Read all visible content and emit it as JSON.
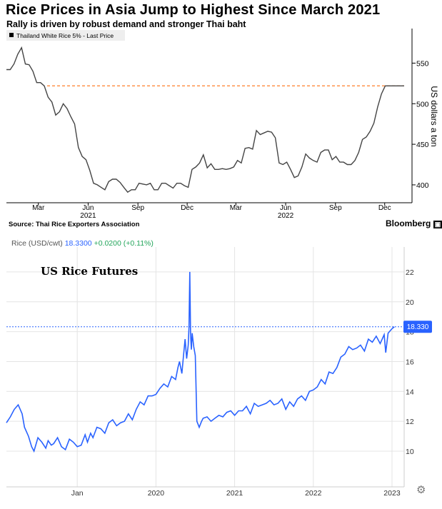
{
  "top": {
    "title": "Rice Prices in Asia Jump to Highest Since March 2021",
    "subtitle": "Rally is driven by robust demand and stronger Thai baht",
    "source": "Source: Thai Rice Exporters Association",
    "brand": "Bloomberg",
    "brand_icon": "bloomberg-terminal-icon"
  },
  "bottom": {
    "title": "US Rice Futures",
    "legend_name": "Rice (USD/cwt)",
    "legend_value": "18.3300",
    "legend_change": "+0.0200 (+0.11%)",
    "price_tag": "18.330",
    "settings_icon": "gear-icon"
  },
  "colors": {
    "thai_line": "#444444",
    "reference_line": "#ff7f27",
    "us_line": "#2962ff",
    "price_tag_bg": "#2962ff",
    "change_green": "#22a55a"
  },
  "chart_data": [
    {
      "type": "line",
      "title": "Rice Prices in Asia Jump to Highest Since March 2021",
      "subtitle": "Rally is driven by robust demand and stronger Thai baht",
      "ylabel": "US dollars a ton",
      "ylim": [
        385,
        575
      ],
      "yticks": [
        400,
        450,
        500,
        550
      ],
      "x_tick_labels": [
        "Mar",
        "Jun",
        "Sep",
        "Dec",
        "Mar",
        "Jun",
        "Sep",
        "Dec"
      ],
      "x_tick_dates": [
        "2021-03-01",
        "2021-06-01",
        "2021-09-01",
        "2021-12-01",
        "2022-03-01",
        "2022-06-01",
        "2022-09-01",
        "2022-12-01"
      ],
      "year_labels": [
        {
          "label": "2021",
          "date": "2021-06-01"
        },
        {
          "label": "2022",
          "date": "2022-06-01"
        }
      ],
      "xlim": [
        "2021-01-01",
        "2023-01-06"
      ],
      "reference_line": 522,
      "grid": false,
      "legend_position": "top-left",
      "series": [
        {
          "name": "Thailand White Rice 5% - Last Price",
          "x": [
            "2021-01-01",
            "2021-01-08",
            "2021-01-15",
            "2021-01-22",
            "2021-01-29",
            "2021-02-05",
            "2021-02-12",
            "2021-02-19",
            "2021-02-26",
            "2021-03-05",
            "2021-03-12",
            "2021-03-19",
            "2021-03-26",
            "2021-04-02",
            "2021-04-09",
            "2021-04-16",
            "2021-04-23",
            "2021-04-30",
            "2021-05-07",
            "2021-05-14",
            "2021-05-21",
            "2021-05-28",
            "2021-06-04",
            "2021-06-11",
            "2021-06-18",
            "2021-06-25",
            "2021-07-02",
            "2021-07-09",
            "2021-07-16",
            "2021-07-23",
            "2021-07-30",
            "2021-08-06",
            "2021-08-13",
            "2021-08-20",
            "2021-08-27",
            "2021-09-03",
            "2021-09-10",
            "2021-09-17",
            "2021-09-24",
            "2021-10-01",
            "2021-10-08",
            "2021-10-15",
            "2021-10-22",
            "2021-10-29",
            "2021-11-05",
            "2021-11-12",
            "2021-11-19",
            "2021-11-26",
            "2021-12-03",
            "2021-12-10",
            "2021-12-17",
            "2021-12-24",
            "2021-12-31",
            "2022-01-07",
            "2022-01-14",
            "2022-01-21",
            "2022-01-28",
            "2022-02-04",
            "2022-02-11",
            "2022-02-18",
            "2022-02-25",
            "2022-03-04",
            "2022-03-11",
            "2022-03-18",
            "2022-03-25",
            "2022-04-01",
            "2022-04-08",
            "2022-04-15",
            "2022-04-22",
            "2022-04-29",
            "2022-05-06",
            "2022-05-13",
            "2022-05-20",
            "2022-05-27",
            "2022-06-03",
            "2022-06-10",
            "2022-06-17",
            "2022-06-24",
            "2022-07-01",
            "2022-07-08",
            "2022-07-15",
            "2022-07-22",
            "2022-07-29",
            "2022-08-05",
            "2022-08-12",
            "2022-08-19",
            "2022-08-26",
            "2022-09-02",
            "2022-09-09",
            "2022-09-16",
            "2022-09-23",
            "2022-09-30",
            "2022-10-07",
            "2022-10-14",
            "2022-10-21",
            "2022-10-28",
            "2022-11-04",
            "2022-11-11",
            "2022-11-18",
            "2022-11-25",
            "2022-12-02",
            "2022-12-09",
            "2022-12-16",
            "2022-12-23",
            "2022-12-30",
            "2023-01-06"
          ],
          "values": [
            542,
            542,
            549,
            561,
            569,
            549,
            548,
            540,
            526,
            526,
            522,
            508,
            502,
            486,
            490,
            500,
            494,
            484,
            475,
            446,
            435,
            431,
            418,
            402,
            400,
            397,
            394,
            404,
            407,
            407,
            403,
            397,
            391,
            394,
            394,
            402,
            401,
            400,
            402,
            394,
            394,
            402,
            402,
            399,
            396,
            402,
            402,
            399,
            397,
            419,
            422,
            427,
            437,
            421,
            426,
            419,
            419,
            420,
            419,
            420,
            422,
            430,
            427,
            445,
            446,
            444,
            467,
            462,
            464,
            466,
            465,
            458,
            427,
            425,
            428,
            419,
            409,
            411,
            422,
            438,
            433,
            430,
            428,
            440,
            443,
            443,
            431,
            435,
            428,
            428,
            425,
            425,
            430,
            440,
            456,
            459,
            466,
            476,
            496,
            512,
            522,
            522,
            522,
            522,
            522,
            522
          ]
        }
      ]
    },
    {
      "type": "line",
      "title": "US Rice Futures",
      "ylabel": "Rice (USD/cwt)",
      "ylim": [
        7.8,
        23
      ],
      "yticks": [
        10,
        12,
        14,
        16,
        18,
        20,
        22
      ],
      "x_tick_labels": [
        "Jan",
        "2020",
        "2021",
        "2022",
        "2023"
      ],
      "x_tick_values": [
        2019.0,
        2020.0,
        2021.0,
        2022.0,
        2023.0
      ],
      "xlim": [
        2018.1,
        2023.1
      ],
      "last_value": 18.33,
      "grid": true,
      "legend_position": "top-left",
      "series": [
        {
          "name": "Rice (USD/cwt)",
          "x": [
            2018.1,
            2018.15,
            2018.2,
            2018.25,
            2018.3,
            2018.33,
            2018.38,
            2018.42,
            2018.45,
            2018.5,
            2018.55,
            2018.6,
            2018.63,
            2018.67,
            2018.7,
            2018.75,
            2018.8,
            2018.85,
            2018.9,
            2018.95,
            2019.0,
            2019.05,
            2019.1,
            2019.13,
            2019.17,
            2019.2,
            2019.25,
            2019.3,
            2019.35,
            2019.4,
            2019.45,
            2019.5,
            2019.55,
            2019.6,
            2019.65,
            2019.7,
            2019.75,
            2019.8,
            2019.85,
            2019.9,
            2019.95,
            2020.0,
            2020.05,
            2020.1,
            2020.15,
            2020.2,
            2020.25,
            2020.28,
            2020.3,
            2020.33,
            2020.35,
            2020.37,
            2020.39,
            2020.41,
            2020.42,
            2020.43,
            2020.44,
            2020.45,
            2020.46,
            2020.48,
            2020.5,
            2020.52,
            2020.55,
            2020.58,
            2020.6,
            2020.65,
            2020.7,
            2020.75,
            2020.8,
            2020.85,
            2020.9,
            2020.95,
            2021.0,
            2021.05,
            2021.1,
            2021.15,
            2021.2,
            2021.25,
            2021.3,
            2021.35,
            2021.4,
            2021.45,
            2021.5,
            2021.55,
            2021.6,
            2021.65,
            2021.7,
            2021.75,
            2021.8,
            2021.85,
            2021.9,
            2021.95,
            2022.0,
            2022.05,
            2022.1,
            2022.15,
            2022.2,
            2022.25,
            2022.3,
            2022.35,
            2022.4,
            2022.45,
            2022.5,
            2022.55,
            2022.6,
            2022.65,
            2022.7,
            2022.75,
            2022.8,
            2022.85,
            2022.9,
            2022.92,
            2022.95,
            2023.0,
            2023.03
          ],
          "values": [
            11.9,
            12.3,
            12.8,
            13.1,
            12.5,
            11.6,
            11.0,
            10.3,
            10.0,
            10.9,
            10.6,
            10.2,
            10.7,
            10.4,
            10.5,
            10.9,
            10.3,
            10.1,
            10.8,
            10.6,
            10.3,
            10.4,
            11.1,
            10.6,
            11.2,
            10.9,
            11.6,
            11.5,
            11.2,
            11.9,
            12.1,
            11.7,
            11.9,
            12.0,
            12.5,
            12.1,
            12.8,
            13.3,
            13.1,
            13.7,
            13.7,
            13.8,
            14.2,
            14.5,
            14.3,
            15.0,
            14.8,
            15.6,
            16.0,
            15.2,
            16.4,
            17.5,
            16.2,
            17.1,
            18.3,
            22.0,
            17.8,
            16.8,
            17.9,
            17.0,
            16.4,
            12.0,
            11.6,
            12.0,
            12.2,
            12.3,
            12.0,
            12.2,
            12.4,
            12.3,
            12.6,
            12.7,
            12.4,
            12.7,
            12.7,
            13.0,
            12.5,
            13.2,
            13.0,
            13.1,
            13.2,
            13.4,
            13.1,
            13.2,
            13.5,
            12.8,
            13.3,
            13.0,
            13.5,
            13.7,
            13.4,
            14.0,
            14.1,
            14.3,
            14.8,
            14.5,
            15.3,
            15.2,
            15.6,
            16.3,
            16.5,
            17.0,
            16.8,
            16.9,
            17.1,
            16.7,
            17.5,
            17.3,
            17.7,
            17.2,
            17.8,
            16.6,
            17.9,
            18.2,
            18.33
          ]
        }
      ]
    }
  ]
}
